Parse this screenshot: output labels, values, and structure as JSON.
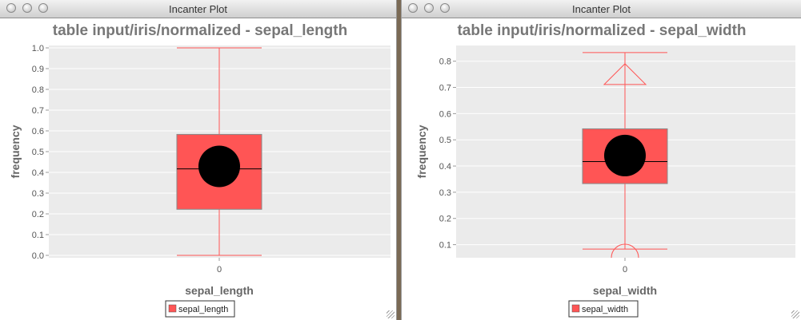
{
  "windows": [
    {
      "title": "Incanter Plot",
      "chart_data": {
        "type": "box",
        "title": "table input/iris/normalized - sepal_length",
        "xlabel": "sepal_length",
        "ylabel": "frequency",
        "ylim": [
          0,
          1.0
        ],
        "yticks": [
          "0.0",
          "0.1",
          "0.2",
          "0.3",
          "0.4",
          "0.5",
          "0.6",
          "0.7",
          "0.8",
          "0.9",
          "1.0"
        ],
        "categories": [
          "0"
        ],
        "legend": [
          "sepal_length"
        ],
        "box": {
          "whisker_low": 0.0,
          "q1": 0.222,
          "median": 0.417,
          "q3": 0.583,
          "whisker_high": 1.0,
          "mean": 0.429,
          "outliers_far_high": false,
          "outliers_far_low": false
        },
        "box_color": "#ff5555"
      }
    },
    {
      "title": "Incanter Plot",
      "chart_data": {
        "type": "box",
        "title": "table input/iris/normalized - sepal_width",
        "xlabel": "sepal_width",
        "ylabel": "frequency",
        "ylim": [
          0.05,
          0.86
        ],
        "yticks": [
          "0.1",
          "0.2",
          "0.3",
          "0.4",
          "0.5",
          "0.6",
          "0.7",
          "0.8"
        ],
        "categories": [
          "0"
        ],
        "legend": [
          "sepal_width"
        ],
        "box": {
          "whisker_low": 0.083,
          "q1": 0.333,
          "median": 0.417,
          "q3": 0.542,
          "whisker_high": 0.833,
          "mean": 0.44,
          "outliers_far_high": true,
          "outliers_far_low": true
        },
        "box_color": "#ff5555"
      }
    }
  ]
}
